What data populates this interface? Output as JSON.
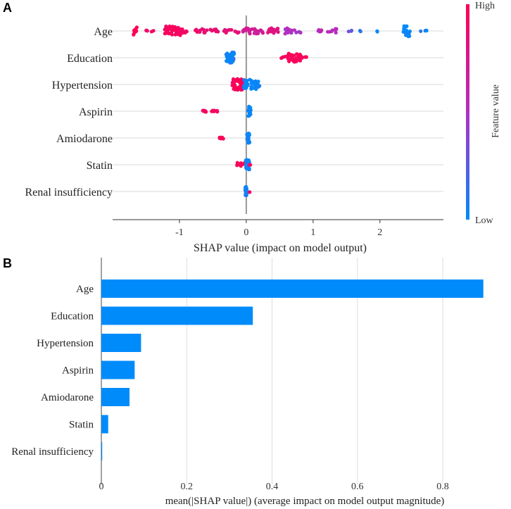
{
  "chart_data": [
    {
      "panel_label": "A",
      "type": "scatter",
      "subtype": "shap-beeswarm",
      "features": [
        "Age",
        "Education",
        "Hypertension",
        "Aspirin",
        "Amiodarone",
        "Statin",
        "Renal insufficiency"
      ],
      "xlabel": "SHAP value (impact on model output)",
      "xlim": [
        -2.0,
        2.95
      ],
      "xticks": [
        -1,
        0,
        1,
        2
      ],
      "xtick_labels": [
        "-1",
        "0",
        "1",
        "2"
      ],
      "colorbar": {
        "label": "Feature value",
        "high": "High",
        "low": "Low"
      },
      "colors": {
        "high": "#ff0052",
        "low": "#008bfb"
      },
      "clusters": [
        {
          "feature": "Age",
          "points": [
            {
              "x": -1.65,
              "w": 0.04,
              "n": 10,
              "f": 1.0,
              "spread": 6
            },
            {
              "x": -1.5,
              "w": 0.02,
              "n": 3,
              "f": 0.95,
              "spread": 2
            },
            {
              "x": -1.4,
              "w": 0.02,
              "n": 2,
              "f": 0.95,
              "spread": 1
            },
            {
              "x": -1.1,
              "w": 0.12,
              "n": 38,
              "f": 0.95,
              "spread": 7
            },
            {
              "x": -0.95,
              "w": 0.06,
              "n": 10,
              "f": 0.9,
              "spread": 3
            },
            {
              "x": -0.6,
              "w": 0.18,
              "n": 18,
              "f": 0.88,
              "spread": 3
            },
            {
              "x": -0.22,
              "w": 0.12,
              "n": 10,
              "f": 0.85,
              "spread": 3
            },
            {
              "x": 0.1,
              "w": 0.15,
              "n": 30,
              "f": 0.72,
              "spread": 4
            },
            {
              "x": 0.42,
              "w": 0.1,
              "n": 18,
              "f": 0.82,
              "spread": 4
            },
            {
              "x": 0.7,
              "w": 0.12,
              "n": 16,
              "f": 0.5,
              "spread": 4
            },
            {
              "x": 1.2,
              "w": 0.15,
              "n": 14,
              "f": 0.55,
              "spread": 3
            },
            {
              "x": 1.55,
              "w": 0.05,
              "n": 3,
              "f": 0.25,
              "spread": 1
            },
            {
              "x": 1.7,
              "w": 0.02,
              "n": 2,
              "f": 0.08,
              "spread": 1
            },
            {
              "x": 1.95,
              "w": 0.02,
              "n": 2,
              "f": 0.05,
              "spread": 1
            },
            {
              "x": 2.4,
              "w": 0.06,
              "n": 18,
              "f": 0.02,
              "spread": 8
            },
            {
              "x": 2.65,
              "w": 0.05,
              "n": 4,
              "f": 0.05,
              "spread": 1
            }
          ]
        },
        {
          "feature": "Education",
          "points": [
            {
              "x": -0.24,
              "w": 0.06,
              "n": 40,
              "f": 0.03,
              "spread": 8
            },
            {
              "x": 0.55,
              "w": 0.06,
              "n": 4,
              "f": 0.97,
              "spread": 2
            },
            {
              "x": 0.72,
              "w": 0.1,
              "n": 38,
              "f": 0.97,
              "spread": 6
            },
            {
              "x": 0.88,
              "w": 0.05,
              "n": 4,
              "f": 0.97,
              "spread": 1
            }
          ]
        },
        {
          "feature": "Hypertension",
          "points": [
            {
              "x": -0.13,
              "w": 0.08,
              "n": 48,
              "f": 0.97,
              "spread": 8
            },
            {
              "x": 0.08,
              "w": 0.12,
              "n": 40,
              "f": 0.03,
              "spread": 7
            }
          ]
        },
        {
          "feature": "Aspirin",
          "points": [
            {
              "x": -0.55,
              "w": 0.12,
              "n": 16,
              "f": 0.97,
              "spread": 1
            },
            {
              "x": 0.05,
              "w": 0.02,
              "n": 26,
              "f": 0.03,
              "spread": 7
            }
          ]
        },
        {
          "feature": "Amiodarone",
          "points": [
            {
              "x": -0.37,
              "w": 0.04,
              "n": 8,
              "f": 0.97,
              "spread": 1
            },
            {
              "x": 0.03,
              "w": 0.02,
              "n": 28,
              "f": 0.03,
              "spread": 7
            }
          ]
        },
        {
          "feature": "Statin",
          "points": [
            {
              "x": -0.08,
              "w": 0.06,
              "n": 10,
              "f": 0.97,
              "spread": 3
            },
            {
              "x": 0.02,
              "w": 0.03,
              "n": 26,
              "f": 0.03,
              "spread": 7
            },
            {
              "x": 0.06,
              "w": 0.02,
              "n": 2,
              "f": 0.97,
              "spread": 1
            }
          ]
        },
        {
          "feature": "Renal insufficiency",
          "points": [
            {
              "x": -0.005,
              "w": 0.01,
              "n": 26,
              "f": 0.03,
              "spread": 7
            },
            {
              "x": 0.05,
              "w": 0.01,
              "n": 2,
              "f": 0.97,
              "spread": 1
            }
          ]
        }
      ]
    },
    {
      "panel_label": "B",
      "type": "bar",
      "orientation": "horizontal",
      "categories": [
        "Age",
        "Education",
        "Hypertension",
        "Aspirin",
        "Amiodarone",
        "Statin",
        "Renal insufficiency"
      ],
      "values": [
        0.895,
        0.355,
        0.093,
        0.078,
        0.066,
        0.016,
        0.002
      ],
      "xlabel": "mean(|SHAP value|) (average impact on model output magnitude)",
      "xlim": [
        0,
        0.95
      ],
      "xticks": [
        0,
        0.2,
        0.4,
        0.6,
        0.8
      ],
      "xtick_labels": [
        "0",
        "0.2",
        "0.4",
        "0.6",
        "0.8"
      ],
      "bar_color": "#008bfb"
    }
  ]
}
